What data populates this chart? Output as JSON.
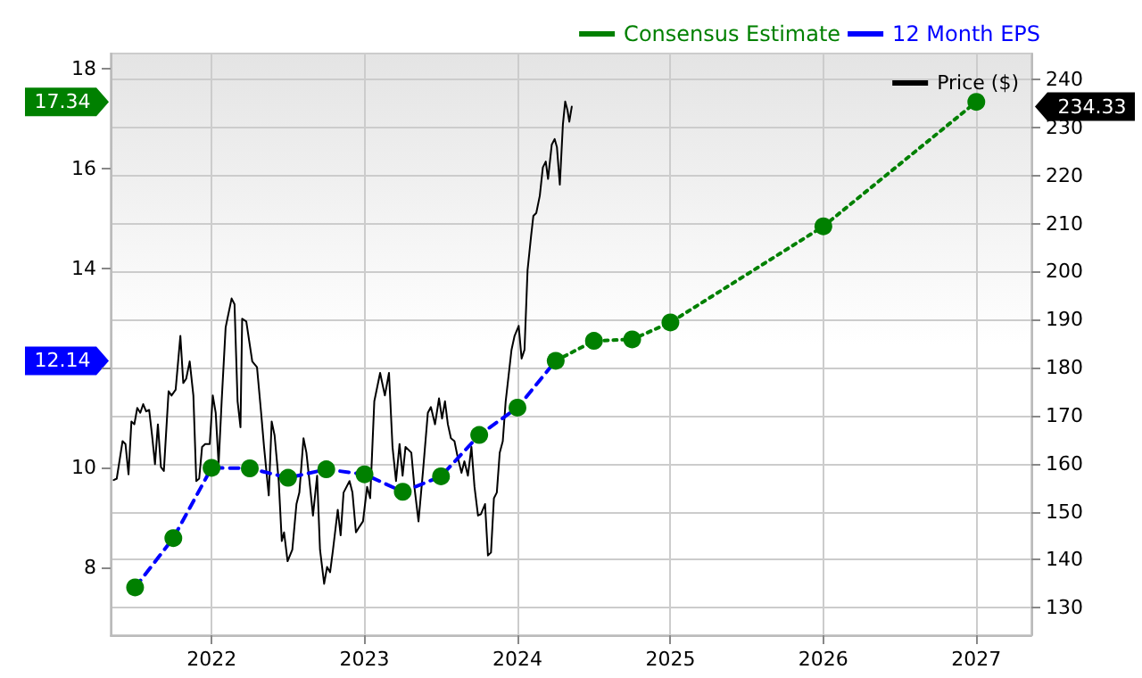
{
  "chart_data": {
    "type": "line",
    "xlim": [
      2021.34,
      2027.36
    ],
    "xticks": [
      2022,
      2023,
      2024,
      2025,
      2026,
      2027
    ],
    "ylim": [
      6.63,
      18.31
    ],
    "yticks": [
      8,
      10,
      {
        "value": 12,
        "label": null
      },
      14,
      16,
      18
    ],
    "y2lim": [
      124.3,
      245.4
    ],
    "y2ticks": [
      130,
      140,
      150,
      160,
      170,
      180,
      190,
      200,
      210,
      220,
      230,
      240
    ],
    "grid": true,
    "legend": "top right",
    "annotations": [
      "234.33",
      "12.14",
      "17.34"
    ],
    "series": [
      {
        "name": "Price ($)",
        "type": "line",
        "axis": "y2",
        "color": "#000000",
        "marker": "none",
        "line_style": "solid",
        "x": [
          2021.36,
          2021.38,
          2021.418,
          2021.437,
          2021.457,
          2021.476,
          2021.495,
          2021.514,
          2021.534,
          2021.553,
          2021.572,
          2021.592,
          2021.611,
          2021.63,
          2021.649,
          2021.669,
          2021.688,
          2021.719,
          2021.738,
          2021.765,
          2021.796,
          2021.815,
          2021.834,
          2021.857,
          2021.881,
          2021.9,
          2021.919,
          2021.938,
          2021.958,
          2021.988,
          2022.008,
          2022.027,
          2022.046,
          2022.066,
          2022.092,
          2022.131,
          2022.15,
          2022.17,
          2022.189,
          2022.2,
          2022.227,
          2022.266,
          2022.297,
          2022.324,
          2022.343,
          2022.374,
          2022.393,
          2022.412,
          2022.439,
          2022.459,
          2022.474,
          2022.497,
          2022.528,
          2022.555,
          2022.574,
          2022.601,
          2022.62,
          2022.644,
          2022.663,
          2022.69,
          2022.709,
          2022.736,
          2022.755,
          2022.775,
          2022.794,
          2022.825,
          2022.844,
          2022.863,
          2022.902,
          2022.921,
          2022.944,
          2022.967,
          2022.99,
          2023.017,
          2023.037,
          2023.064,
          2023.102,
          2023.133,
          2023.16,
          2023.183,
          2023.206,
          2023.229,
          2023.249,
          2023.268,
          2023.306,
          2023.326,
          2023.353,
          2023.383,
          2023.414,
          2023.434,
          2023.461,
          2023.487,
          2023.507,
          2023.526,
          2023.545,
          2023.565,
          2023.588,
          2023.607,
          2023.634,
          2023.653,
          2023.676,
          2023.699,
          2023.719,
          2023.742,
          2023.761,
          2023.788,
          2023.807,
          2023.827,
          2023.846,
          2023.865,
          2023.884,
          2023.904,
          2023.923,
          2023.961,
          2023.981,
          2024.008,
          2024.027,
          2024.046,
          2024.066,
          2024.089,
          2024.104,
          2024.123,
          2024.146,
          2024.166,
          2024.185,
          2024.2,
          2024.224,
          2024.243,
          2024.258,
          2024.277,
          2024.297,
          2024.312,
          2024.327,
          2024.339,
          2024.355
        ],
        "values": [
          156.6,
          156.9,
          164.7,
          164.1,
          157.8,
          168.8,
          168.2,
          171.6,
          170.6,
          172.4,
          170.9,
          171.2,
          165.9,
          159.9,
          168.2,
          159.3,
          158.5,
          175.1,
          174.2,
          175.4,
          186.6,
          176.8,
          177.7,
          181.3,
          174.2,
          156.4,
          156.9,
          163.5,
          164.1,
          164.1,
          174.2,
          170.6,
          159.9,
          173.0,
          188.4,
          194.4,
          193.2,
          173.0,
          167.6,
          190.2,
          189.6,
          181.3,
          180.1,
          170.6,
          163.5,
          153.4,
          168.8,
          165.9,
          156.4,
          143.9,
          145.7,
          139.7,
          142.1,
          151.6,
          154.0,
          165.3,
          162.3,
          155.2,
          149.2,
          157.5,
          142.1,
          135.0,
          138.5,
          137.4,
          142.1,
          150.4,
          145.1,
          154.0,
          156.4,
          154.0,
          145.7,
          146.9,
          148.0,
          155.2,
          152.8,
          173.0,
          178.9,
          174.2,
          178.9,
          163.5,
          156.4,
          164.1,
          157.5,
          163.5,
          162.3,
          155.2,
          148.0,
          158.7,
          170.6,
          171.8,
          168.2,
          173.6,
          169.4,
          173.0,
          168.2,
          165.3,
          164.7,
          161.7,
          158.1,
          160.5,
          157.5,
          163.5,
          155.2,
          149.2,
          149.5,
          151.6,
          140.9,
          141.5,
          152.8,
          154.0,
          162.3,
          164.7,
          173.0,
          183.7,
          186.6,
          188.7,
          181.9,
          183.7,
          200.3,
          207.4,
          211.6,
          212.2,
          215.8,
          221.7,
          222.9,
          219.3,
          226.4,
          227.6,
          225.9,
          218.1,
          230.6,
          235.4,
          233.6,
          231.2,
          234.33
        ]
      },
      {
        "name": "12 Month EPS",
        "type": "line",
        "color": "#0000ff",
        "marker": "none",
        "line_style": "dashed",
        "x": [
          2021.5,
          2021.75,
          2022.0,
          2022.25,
          2022.5,
          2022.75,
          2023.0,
          2023.25,
          2023.5,
          2023.75,
          2024.0,
          2024.25
        ],
        "values": [
          7.59,
          8.58,
          9.99,
          9.98,
          9.79,
          9.96,
          9.86,
          9.51,
          9.82,
          10.65,
          11.2,
          12.14
        ]
      },
      {
        "type": "scatter",
        "color": "#008000",
        "marker": "circle",
        "x": [
          2021.5,
          2021.75,
          2022.0,
          2022.25,
          2022.5,
          2022.75,
          2023.0,
          2023.25,
          2023.5,
          2023.75,
          2024.0
        ],
        "values": [
          7.59,
          8.58,
          9.99,
          9.98,
          9.79,
          9.96,
          9.86,
          9.51,
          9.82,
          10.65,
          11.2
        ]
      },
      {
        "name": "Consensus Estimate",
        "type": "line",
        "color": "#008000",
        "marker": "circle",
        "line_style": "dotted",
        "x": [
          2024.25,
          2024.5,
          2024.75,
          2025.0,
          2026.0,
          2027.0
        ],
        "values": [
          12.14,
          12.54,
          12.57,
          12.91,
          14.84,
          17.34
        ]
      }
    ]
  }
}
